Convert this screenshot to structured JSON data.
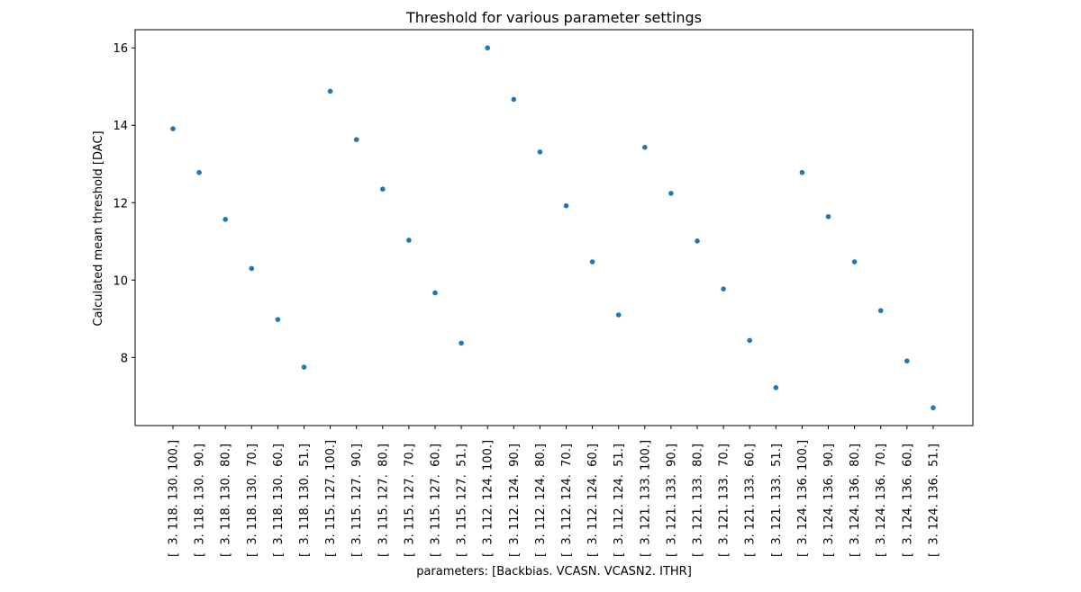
{
  "chart_data": {
    "type": "scatter",
    "title": "Threshold for various parameter settings",
    "xlabel": "parameters: [Backbias. VCASN. VCASN2. ITHR]",
    "ylabel": "Calculated mean threshold [DAC]",
    "ylim": [
      6.24,
      16.47
    ],
    "yticks": [
      8,
      10,
      12,
      14,
      16
    ],
    "grid": false,
    "marker_color": "#1f77b4",
    "categories": [
      "[  3. 118. 130. 100.]",
      "[  3. 118. 130.  90.]",
      "[  3. 118. 130.  80.]",
      "[  3. 118. 130.  70.]",
      "[  3. 118. 130.  60.]",
      "[  3. 118. 130.  51.]",
      "[  3. 115. 127. 100.]",
      "[  3. 115. 127.  90.]",
      "[  3. 115. 127.  80.]",
      "[  3. 115. 127.  70.]",
      "[  3. 115. 127.  60.]",
      "[  3. 115. 127.  51.]",
      "[  3. 112. 124. 100.]",
      "[  3. 112. 124.  90.]",
      "[  3. 112. 124.  80.]",
      "[  3. 112. 124.  70.]",
      "[  3. 112. 124.  60.]",
      "[  3. 112. 124.  51.]",
      "[  3. 121. 133. 100.]",
      "[  3. 121. 133.  90.]",
      "[  3. 121. 133.  80.]",
      "[  3. 121. 133.  70.]",
      "[  3. 121. 133.  60.]",
      "[  3. 121. 133.  51.]",
      "[  3. 124. 136. 100.]",
      "[  3. 124. 136.  90.]",
      "[  3. 124. 136.  80.]",
      "[  3. 124. 136.  70.]",
      "[  3. 124. 136.  60.]",
      "[  3. 124. 136.  51.]"
    ],
    "values": [
      13.91,
      12.78,
      11.57,
      10.3,
      8.98,
      7.75,
      14.88,
      13.63,
      12.35,
      11.03,
      9.67,
      8.37,
      16.0,
      14.67,
      13.31,
      11.92,
      10.47,
      9.1,
      13.43,
      12.24,
      11.01,
      9.77,
      8.44,
      7.22,
      12.78,
      11.64,
      10.47,
      9.21,
      7.91,
      6.7
    ]
  }
}
